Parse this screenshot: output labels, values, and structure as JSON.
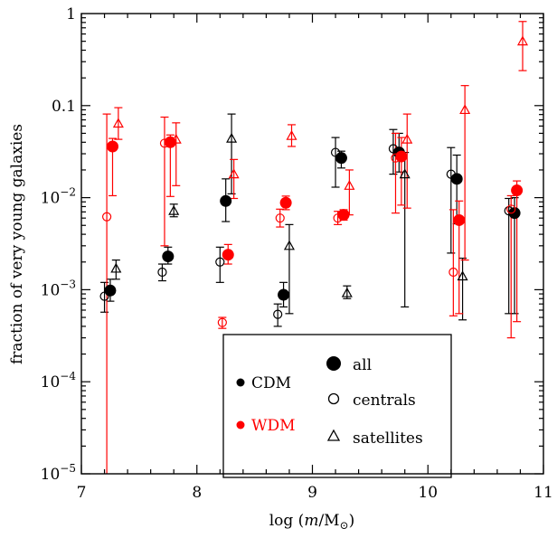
{
  "chart_data": {
    "type": "scatter",
    "xlabel": "log (m/M⊙)",
    "ylabel": "fraction of very young galaxies",
    "xlim": [
      7,
      11
    ],
    "ylim": [
      1e-05,
      1
    ],
    "yscale": "log",
    "x_ticks": [
      7,
      8,
      9,
      10,
      11
    ],
    "x_tick_labels": [
      "7",
      "8",
      "9",
      "10",
      "11"
    ],
    "y_ticks": [
      {
        "value": 1e-05,
        "base": "10",
        "exp": "−5"
      },
      {
        "value": 0.0001,
        "base": "10",
        "exp": "−4"
      },
      {
        "value": 0.001,
        "base": "10",
        "exp": "−3"
      },
      {
        "value": 0.01,
        "base": "10",
        "exp": "−2"
      },
      {
        "value": 0.1,
        "base": "0.1",
        "exp": ""
      },
      {
        "value": 1,
        "base": "1",
        "exp": ""
      }
    ],
    "grid": false,
    "legend_placement": "bottom-center",
    "legend": {
      "models": [
        {
          "label": "CDM",
          "color": "#000000"
        },
        {
          "label": "WDM",
          "color": "#ff0000"
        }
      ],
      "samples": [
        {
          "label": "all",
          "marker": "filled-circle"
        },
        {
          "label": "centrals",
          "marker": "open-circle"
        },
        {
          "label": "satellites",
          "marker": "open-triangle"
        }
      ]
    },
    "series": [
      {
        "model": "CDM",
        "sample": "all",
        "color": "#000000",
        "marker": "filled-circle",
        "points": [
          {
            "x": 7.25,
            "y": 0.00098,
            "lo": 0.00075,
            "hi": 0.0013
          },
          {
            "x": 7.75,
            "y": 0.0023,
            "lo": 0.0019,
            "hi": 0.0029
          },
          {
            "x": 8.25,
            "y": 0.0092,
            "lo": 0.0055,
            "hi": 0.016
          },
          {
            "x": 8.75,
            "y": 0.00088,
            "lo": 0.00065,
            "hi": 0.0012
          },
          {
            "x": 9.25,
            "y": 0.027,
            "lo": 0.021,
            "hi": 0.032
          },
          {
            "x": 9.75,
            "y": 0.031,
            "lo": 0.019,
            "hi": 0.05
          },
          {
            "x": 10.25,
            "y": 0.016,
            "lo": 0.0052,
            "hi": 0.029
          },
          {
            "x": 10.75,
            "y": 0.0068,
            "lo": 0.00055,
            "hi": 0.01
          }
        ]
      },
      {
        "model": "CDM",
        "sample": "centrals",
        "color": "#000000",
        "marker": "open-circle",
        "points": [
          {
            "x": 7.2,
            "y": 0.00085,
            "lo": 0.00057,
            "hi": 0.0012
          },
          {
            "x": 7.7,
            "y": 0.00155,
            "lo": 0.00125,
            "hi": 0.0019
          },
          {
            "x": 8.2,
            "y": 0.002,
            "lo": 0.0012,
            "hi": 0.0029
          },
          {
            "x": 8.7,
            "y": 0.00054,
            "lo": 0.0004,
            "hi": 0.0007
          },
          {
            "x": 9.2,
            "y": 0.031,
            "lo": 0.013,
            "hi": 0.045
          },
          {
            "x": 9.7,
            "y": 0.034,
            "lo": 0.018,
            "hi": 0.055
          },
          {
            "x": 10.2,
            "y": 0.018,
            "lo": 0.0025,
            "hi": 0.035
          },
          {
            "x": 10.7,
            "y": 0.0072,
            "lo": 0.00055,
            "hi": 0.0098
          }
        ]
      },
      {
        "model": "CDM",
        "sample": "satellites",
        "color": "#000000",
        "marker": "open-triangle",
        "points": [
          {
            "x": 7.3,
            "y": 0.0017,
            "lo": 0.0013,
            "hi": 0.0021
          },
          {
            "x": 7.8,
            "y": 0.0072,
            "lo": 0.0062,
            "hi": 0.0085
          },
          {
            "x": 8.3,
            "y": 0.044,
            "lo": 0.011,
            "hi": 0.081
          },
          {
            "x": 8.8,
            "y": 0.003,
            "lo": 0.00055,
            "hi": 0.0051
          },
          {
            "x": 9.3,
            "y": 0.00092,
            "lo": 0.0008,
            "hi": 0.0011
          },
          {
            "x": 9.8,
            "y": 0.018,
            "lo": 0.00065,
            "hi": 0.031
          },
          {
            "x": 10.3,
            "y": 0.0014,
            "lo": 0.00047,
            "hi": 0.0022
          }
        ]
      },
      {
        "model": "WDM",
        "sample": "all",
        "color": "#ff0000",
        "marker": "filled-circle",
        "points": [
          {
            "x": 7.27,
            "y": 0.036,
            "lo": 0.0105,
            "hi": 0.044
          },
          {
            "x": 7.77,
            "y": 0.04,
            "lo": 0.0103,
            "hi": 0.048
          },
          {
            "x": 8.27,
            "y": 0.0024,
            "lo": 0.0019,
            "hi": 0.0031
          },
          {
            "x": 8.77,
            "y": 0.0088,
            "lo": 0.0074,
            "hi": 0.0104
          },
          {
            "x": 9.27,
            "y": 0.0065,
            "lo": 0.0057,
            "hi": 0.0074
          },
          {
            "x": 9.77,
            "y": 0.028,
            "lo": 0.0083,
            "hi": 0.045
          },
          {
            "x": 10.27,
            "y": 0.0057,
            "lo": 0.00055,
            "hi": 0.0092
          },
          {
            "x": 10.77,
            "y": 0.012,
            "lo": 0.00045,
            "hi": 0.0152
          }
        ]
      },
      {
        "model": "WDM",
        "sample": "centrals",
        "color": "#ff0000",
        "marker": "open-circle",
        "points": [
          {
            "x": 7.22,
            "y": 0.0062,
            "lo": 1e-05,
            "hi": 0.081
          },
          {
            "x": 7.72,
            "y": 0.039,
            "lo": 0.003,
            "hi": 0.075
          },
          {
            "x": 8.22,
            "y": 0.00044,
            "lo": 0.00038,
            "hi": 0.0005
          },
          {
            "x": 8.72,
            "y": 0.006,
            "lo": 0.0048,
            "hi": 0.0075
          },
          {
            "x": 9.22,
            "y": 0.006,
            "lo": 0.0051,
            "hi": 0.0071
          },
          {
            "x": 9.72,
            "y": 0.027,
            "lo": 0.0068,
            "hi": 0.05
          },
          {
            "x": 10.22,
            "y": 0.00155,
            "lo": 0.00052,
            "hi": 0.0074
          },
          {
            "x": 10.72,
            "y": 0.0075,
            "lo": 0.0003,
            "hi": 0.0105
          }
        ]
      },
      {
        "model": "WDM",
        "sample": "satellites",
        "color": "#ff0000",
        "marker": "open-triangle",
        "points": [
          {
            "x": 7.32,
            "y": 0.064,
            "lo": 0.043,
            "hi": 0.095
          },
          {
            "x": 7.82,
            "y": 0.043,
            "lo": 0.0135,
            "hi": 0.065
          },
          {
            "x": 8.32,
            "y": 0.018,
            "lo": 0.0098,
            "hi": 0.026
          },
          {
            "x": 8.82,
            "y": 0.047,
            "lo": 0.036,
            "hi": 0.062
          },
          {
            "x": 9.32,
            "y": 0.0135,
            "lo": 0.0065,
            "hi": 0.02
          },
          {
            "x": 9.82,
            "y": 0.043,
            "lo": 0.0077,
            "hi": 0.081
          },
          {
            "x": 10.32,
            "y": 0.09,
            "lo": 0.0021,
            "hi": 0.165
          },
          {
            "x": 10.82,
            "y": 0.5,
            "lo": 0.24,
            "hi": 0.82
          }
        ]
      }
    ]
  }
}
